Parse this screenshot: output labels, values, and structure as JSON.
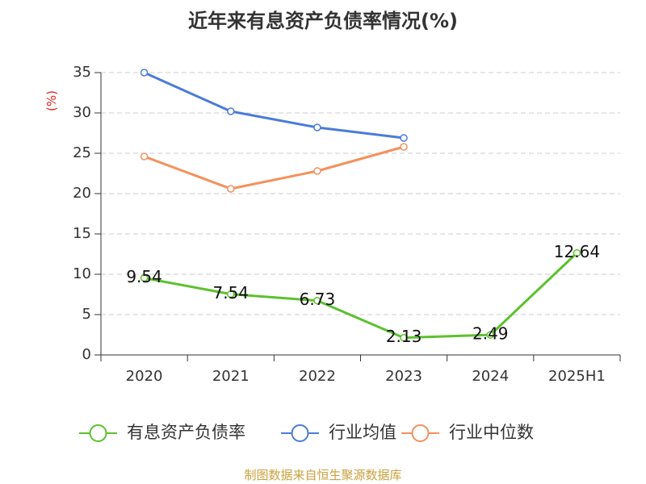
{
  "chart_data": {
    "type": "line",
    "title": "近年来有息资产负债率情况(%)",
    "xlabel": "",
    "ylabel": "(%)",
    "categories": [
      "2020",
      "2021",
      "2022",
      "2023",
      "2024",
      "2025H1"
    ],
    "ylim": [
      0,
      35
    ],
    "yticks": [
      0,
      5,
      10,
      15,
      20,
      25,
      30,
      35
    ],
    "grid": true,
    "legend_position": "bottom",
    "series": [
      {
        "name": "有息资产负债率",
        "color": "#5cc12d",
        "values": [
          9.54,
          7.54,
          6.73,
          2.13,
          2.49,
          12.64
        ],
        "data_labels": [
          "9.54",
          "7.54",
          "6.73",
          "2.13",
          "2.49",
          "12.64"
        ]
      },
      {
        "name": "行业均值",
        "color": "#4b7bd9",
        "values": [
          35.0,
          30.2,
          28.2,
          26.9,
          null,
          null
        ]
      },
      {
        "name": "行业中位数",
        "color": "#f5905c",
        "values": [
          24.6,
          20.6,
          22.8,
          25.8,
          null,
          null
        ]
      }
    ]
  },
  "source_note": "制图数据来自恒生聚源数据库",
  "colors": {
    "ylabel": "#e02020",
    "source_note": "#c9a13c",
    "axis": "#333333",
    "grid": "#cccccc",
    "text": "#333333"
  }
}
